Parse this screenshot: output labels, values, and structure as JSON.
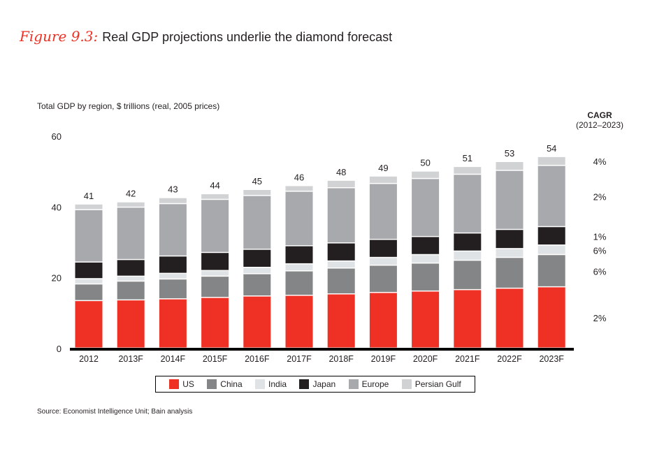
{
  "figure_label": "Figure 9.3:",
  "title": "Real GDP projections underlie the diamond forecast",
  "source": "Source:  Economist Intelligence Unit; Bain analysis",
  "chart_data": {
    "type": "stacked-bar",
    "title": "Real GDP projections underlie the diamond forecast",
    "ylabel": "Total GDP by region, $ trillions (real, 2005 prices)",
    "ylim": [
      0,
      60
    ],
    "yticks": [
      0,
      20,
      40,
      60
    ],
    "grid": false,
    "legend_position": "bottom",
    "categories": [
      "2012",
      "2013F",
      "2014F",
      "2015F",
      "2016F",
      "2017F",
      "2018F",
      "2019F",
      "2020F",
      "2021F",
      "2022F",
      "2023F"
    ],
    "totals": [
      41,
      42,
      43,
      44,
      45,
      46,
      48,
      49,
      50,
      51,
      53,
      54
    ],
    "series": [
      {
        "name": "US",
        "color": "#ee3124",
        "values": [
          13.4,
          13.6,
          13.9,
          14.3,
          14.7,
          14.9,
          15.3,
          15.7,
          16.1,
          16.5,
          16.9,
          17.3
        ],
        "cagr": "2%"
      },
      {
        "name": "China",
        "color": "#848586",
        "values": [
          4.7,
          5.3,
          5.6,
          6.0,
          6.3,
          6.9,
          7.3,
          7.7,
          7.9,
          8.3,
          8.7,
          9.1
        ],
        "cagr": "6%"
      },
      {
        "name": "India",
        "color": "#dfe3e5",
        "values": [
          1.5,
          1.4,
          1.6,
          1.6,
          1.8,
          2.0,
          2.0,
          2.2,
          2.4,
          2.6,
          2.5,
          2.7
        ],
        "cagr": "6%"
      },
      {
        "name": "Japan",
        "color": "#231f20",
        "values": [
          4.7,
          4.7,
          4.9,
          5.1,
          5.1,
          5.1,
          5.1,
          5.1,
          5.1,
          5.1,
          5.4,
          5.2
        ],
        "cagr": "1%"
      },
      {
        "name": "Europe",
        "color": "#a8a9ad",
        "values": [
          14.8,
          14.8,
          14.8,
          15.0,
          15.2,
          15.4,
          15.6,
          15.8,
          16.4,
          16.6,
          16.7,
          17.3
        ],
        "cagr": "2%"
      },
      {
        "name": "Persian Gulf",
        "color": "#d1d2d4",
        "values": [
          1.6,
          1.5,
          1.7,
          1.6,
          1.7,
          1.6,
          2.1,
          2.1,
          2.1,
          2.2,
          2.5,
          2.5
        ],
        "cagr": "4%"
      }
    ],
    "cagr_header": "CAGR",
    "cagr_period": "(2012–2023)"
  }
}
